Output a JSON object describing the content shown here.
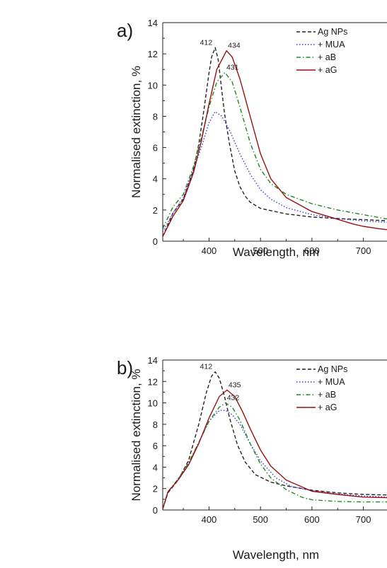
{
  "chart_data": [
    {
      "type": "line",
      "panel_label": "a)",
      "xlabel": "Wavelength, nm",
      "ylabel": "Normalised extinction, %",
      "xlim": [
        310,
        750
      ],
      "ylim": [
        0,
        14
      ],
      "xticks": [
        400,
        500,
        600,
        700
      ],
      "yticks": [
        0,
        2,
        4,
        6,
        8,
        10,
        12,
        14
      ],
      "grid": false,
      "legend_position": "top-right",
      "annotations": [
        {
          "text": "412",
          "x": 412,
          "y": 12.4
        },
        {
          "text": "434",
          "x": 434,
          "y": 12.2
        },
        {
          "text": "431",
          "x": 431,
          "y": 10.8
        }
      ],
      "series": [
        {
          "name": "Ag NPs",
          "color": "#222222",
          "style": "dashed",
          "x": [
            310,
            330,
            350,
            370,
            380,
            390,
            400,
            405,
            412,
            418,
            425,
            430,
            440,
            450,
            460,
            470,
            480,
            500,
            550,
            600,
            650,
            700,
            750
          ],
          "y": [
            0.3,
            1.8,
            2.7,
            4.6,
            6.2,
            8.4,
            10.8,
            11.8,
            12.4,
            11.6,
            9.6,
            8.2,
            6.2,
            4.5,
            3.5,
            2.9,
            2.5,
            2.1,
            1.75,
            1.55,
            1.45,
            1.38,
            1.3
          ]
        },
        {
          "name": "+ MUA",
          "color": "#3a3ad6",
          "style": "dotted",
          "x": [
            310,
            330,
            350,
            370,
            385,
            400,
            412,
            425,
            440,
            460,
            480,
            500,
            520,
            550,
            600,
            650,
            700,
            750
          ],
          "y": [
            0.6,
            1.8,
            2.8,
            4.6,
            6.0,
            7.6,
            8.3,
            8.0,
            7.1,
            5.6,
            4.3,
            3.3,
            2.7,
            2.15,
            1.7,
            1.45,
            1.3,
            1.2
          ]
        },
        {
          "name": "+ aB",
          "color": "#1f8a1f",
          "style": "dashdot",
          "x": [
            310,
            330,
            350,
            370,
            385,
            400,
            415,
            431,
            445,
            460,
            480,
            500,
            520,
            550,
            600,
            650,
            700,
            750
          ],
          "y": [
            0.8,
            2.2,
            3.0,
            4.8,
            6.6,
            8.6,
            10.2,
            10.8,
            10.2,
            8.6,
            6.3,
            4.6,
            3.7,
            3.0,
            2.4,
            2.0,
            1.7,
            1.4
          ]
        },
        {
          "name": "+ aG",
          "color": "#9b1111",
          "style": "solid",
          "x": [
            310,
            330,
            350,
            370,
            385,
            400,
            415,
            434,
            445,
            460,
            480,
            500,
            520,
            550,
            600,
            650,
            680,
            700,
            730,
            750
          ],
          "y": [
            0.3,
            1.6,
            2.6,
            4.4,
            6.4,
            8.8,
            11.0,
            12.2,
            11.8,
            10.4,
            8.0,
            5.6,
            4.0,
            2.8,
            1.9,
            1.4,
            1.1,
            0.95,
            0.8,
            0.72
          ]
        }
      ]
    },
    {
      "type": "line",
      "panel_label": "b)",
      "xlabel": "Wavelength, nm",
      "ylabel": "Normalised extinction, %",
      "xlim": [
        310,
        750
      ],
      "ylim": [
        0,
        14
      ],
      "xticks": [
        400,
        500,
        600,
        700
      ],
      "yticks": [
        0,
        2,
        4,
        6,
        8,
        10,
        12,
        14
      ],
      "grid": false,
      "legend_position": "top-right",
      "annotations": [
        {
          "text": "412",
          "x": 412,
          "y": 12.9
        },
        {
          "text": "435",
          "x": 435,
          "y": 11.2
        },
        {
          "text": "432",
          "x": 432,
          "y": 10.0
        }
      ],
      "series": [
        {
          "name": "Ag NPs",
          "color": "#222222",
          "style": "dashed",
          "x": [
            310,
            320,
            340,
            360,
            380,
            395,
            405,
            412,
            420,
            430,
            440,
            455,
            470,
            490,
            520,
            550,
            600,
            650,
            700,
            750
          ],
          "y": [
            0.1,
            1.6,
            2.8,
            4.6,
            8.0,
            11.0,
            12.5,
            12.9,
            12.3,
            10.6,
            8.6,
            6.1,
            4.5,
            3.3,
            2.6,
            2.25,
            1.85,
            1.6,
            1.45,
            1.4
          ]
        },
        {
          "name": "+ MUA",
          "color": "#3a3ad6",
          "style": "dotted",
          "x": [
            310,
            320,
            340,
            360,
            380,
            400,
            420,
            432,
            445,
            460,
            480,
            500,
            530,
            560,
            600,
            650,
            700,
            750
          ],
          "y": [
            0.1,
            1.6,
            2.9,
            4.3,
            6.3,
            8.3,
            9.3,
            9.3,
            8.9,
            8.0,
            6.2,
            4.6,
            3.0,
            2.2,
            1.8,
            1.5,
            1.3,
            1.2
          ]
        },
        {
          "name": "+ aB",
          "color": "#1f8a1f",
          "style": "dashdot",
          "x": [
            310,
            320,
            340,
            360,
            380,
            400,
            420,
            432,
            445,
            460,
            480,
            500,
            520,
            550,
            580,
            600,
            650,
            700,
            750
          ],
          "y": [
            0.1,
            1.7,
            2.9,
            4.4,
            6.3,
            8.3,
            9.6,
            10.0,
            9.6,
            8.4,
            6.2,
            4.3,
            3.0,
            1.9,
            1.2,
            0.95,
            0.8,
            0.75,
            0.75
          ]
        },
        {
          "name": "+ aG",
          "color": "#9b1111",
          "style": "solid",
          "x": [
            310,
            320,
            340,
            360,
            380,
            400,
            420,
            435,
            450,
            465,
            480,
            500,
            520,
            550,
            600,
            650,
            700,
            750
          ],
          "y": [
            0.1,
            1.7,
            2.8,
            4.2,
            6.2,
            8.6,
            10.6,
            11.2,
            10.6,
            9.2,
            7.6,
            5.6,
            4.1,
            2.8,
            1.75,
            1.45,
            1.2,
            1.15
          ]
        }
      ]
    }
  ]
}
